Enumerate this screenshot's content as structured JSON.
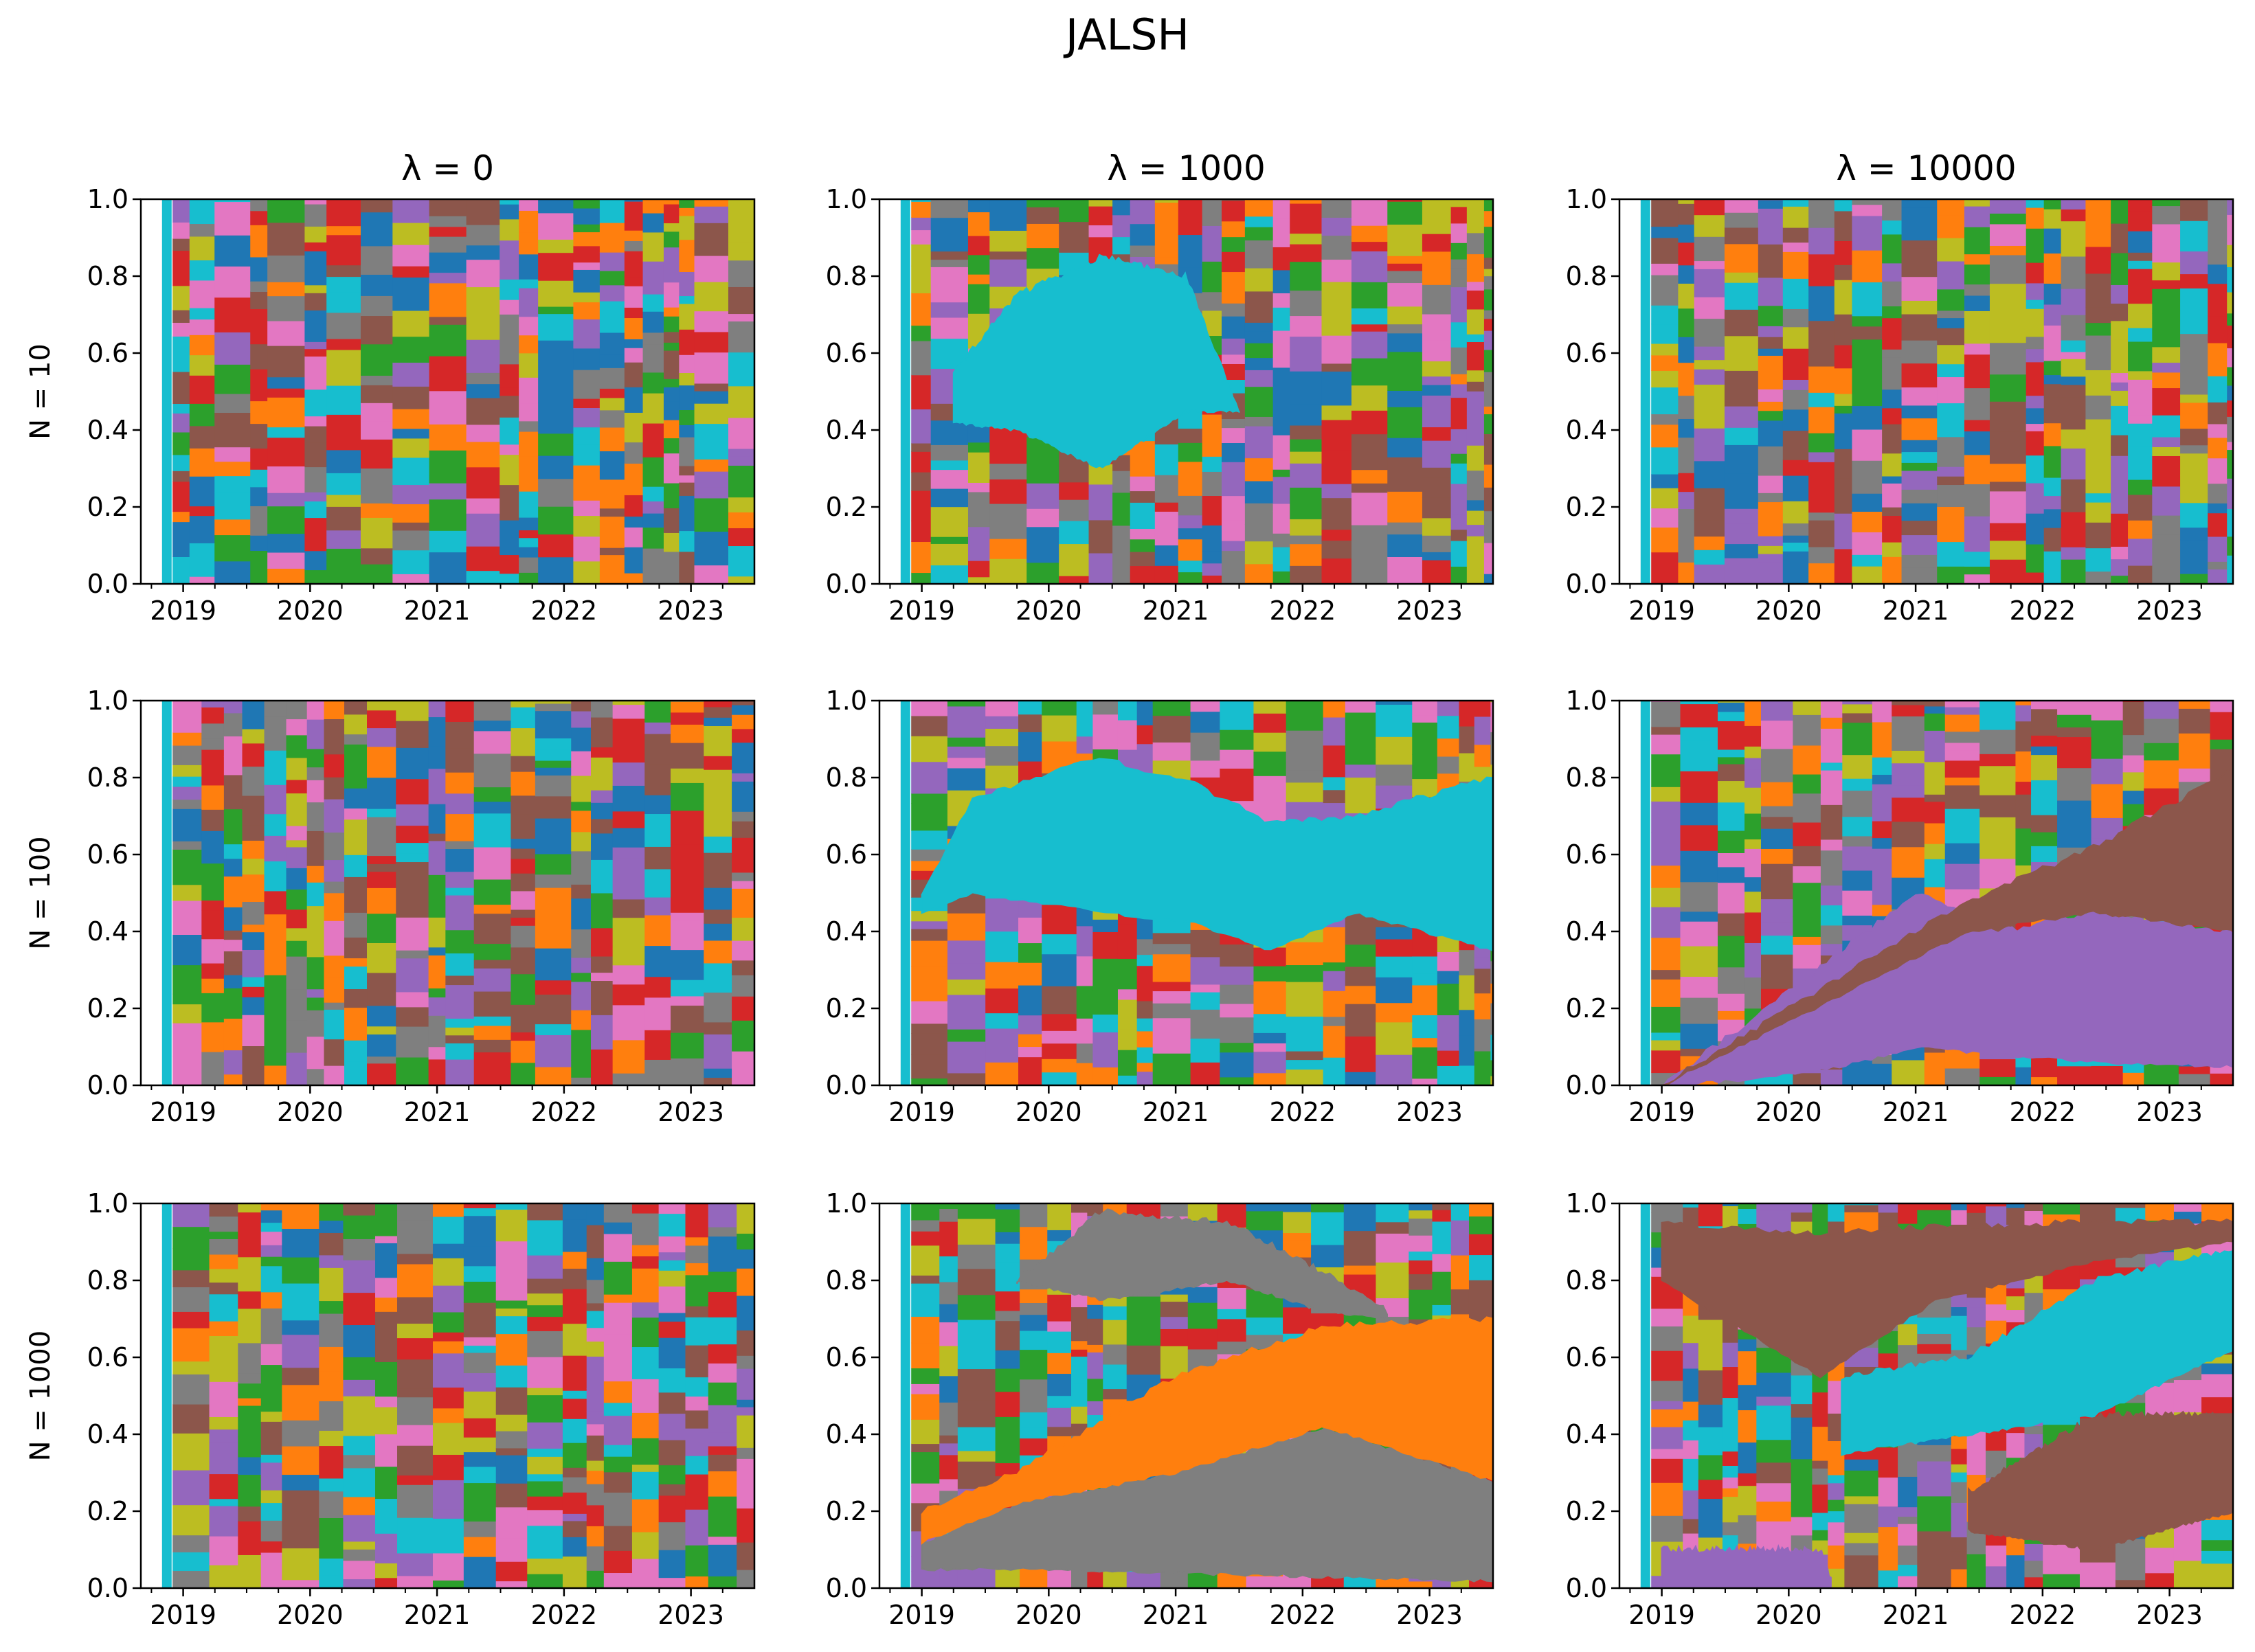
{
  "figure": {
    "title": "JALSH",
    "column_titles": [
      "λ = 0",
      "λ = 1000",
      "λ = 10000"
    ],
    "row_labels": [
      "N = 10",
      "N = 100",
      "N = 1000"
    ]
  },
  "colors": [
    "#1f77b4",
    "#ff7f0e",
    "#2ca02c",
    "#d62728",
    "#9467bd",
    "#8c564b",
    "#e377c2",
    "#7f7f7f",
    "#bcbd22",
    "#17becf"
  ],
  "chart_data": {
    "type": "area",
    "layout": "3x3 grid of stacked-area portfolio weight plots",
    "x_tick_labels": [
      "2019",
      "2020",
      "2021",
      "2022",
      "2023"
    ],
    "xlim": [
      "2018-09",
      "2023-07"
    ],
    "y_tick_labels": [
      "0.0",
      "0.2",
      "0.4",
      "0.6",
      "0.8",
      "1.0"
    ],
    "ylim": [
      0,
      1
    ],
    "grid": false,
    "legend": "none",
    "panels": [
      {
        "row": 0,
        "col": 0,
        "dominant": []
      },
      {
        "row": 0,
        "col": 1,
        "dominant": [
          {
            "color": "#17becf",
            "points": [
              [
                "2019-04",
                0.42,
                0.55
              ],
              [
                "2019-10",
                0.4,
                0.75
              ],
              [
                "2020-06",
                0.3,
                0.85
              ],
              [
                "2021-02",
                0.45,
                0.8
              ],
              [
                "2021-06",
                0.45,
                0.52
              ],
              [
                "2021-07",
                0.45,
                0.45
              ]
            ]
          }
        ]
      },
      {
        "row": 0,
        "col": 2,
        "dominant": []
      },
      {
        "row": 1,
        "col": 0,
        "dominant": []
      },
      {
        "row": 1,
        "col": 1,
        "dominant": [
          {
            "color": "#17becf",
            "points": [
              [
                "2019-01",
                0.45,
                0.5
              ],
              [
                "2019-06",
                0.5,
                0.75
              ],
              [
                "2020-06",
                0.45,
                0.85
              ],
              [
                "2021-03",
                0.42,
                0.78
              ],
              [
                "2021-10",
                0.35,
                0.68
              ],
              [
                "2022-06",
                0.45,
                0.7
              ],
              [
                "2023-07",
                0.35,
                0.8
              ]
            ]
          }
        ]
      },
      {
        "row": 1,
        "col": 2,
        "dominant": [
          {
            "color": "#9467bd",
            "points": [
              [
                "2019-01",
                0.0,
                0.0
              ],
              [
                "2019-11",
                0.02,
                0.2
              ],
              [
                "2020-06",
                0.05,
                0.35
              ],
              [
                "2021-01",
                0.1,
                0.5
              ],
              [
                "2021-09",
                0.08,
                0.4
              ],
              [
                "2022-06",
                0.06,
                0.45
              ],
              [
                "2023-07",
                0.05,
                0.4
              ]
            ]
          },
          {
            "color": "#8c564b",
            "points": [
              [
                "2019-01",
                0.0,
                0.0
              ],
              [
                "2021-06",
                0.4,
                0.48
              ],
              [
                "2022-06",
                0.45,
                0.62
              ],
              [
                "2023-07",
                0.4,
                0.82
              ]
            ]
          }
        ]
      },
      {
        "row": 2,
        "col": 0,
        "dominant": []
      },
      {
        "row": 2,
        "col": 1,
        "dominant": [
          {
            "color": "#7f7f7f",
            "points": [
              [
                "2019-01",
                0.05,
                0.12
              ],
              [
                "2019-10",
                0.05,
                0.22
              ],
              [
                "2021-01",
                0.04,
                0.3
              ],
              [
                "2022-03",
                0.03,
                0.42
              ],
              [
                "2023-07",
                0.02,
                0.28
              ]
            ]
          },
          {
            "color": "#ff7f0e",
            "points": [
              [
                "2019-01",
                0.12,
                0.2
              ],
              [
                "2019-10",
                0.22,
                0.3
              ],
              [
                "2021-01",
                0.3,
                0.55
              ],
              [
                "2022-03",
                0.42,
                0.68
              ],
              [
                "2023-07",
                0.28,
                0.7
              ]
            ]
          },
          {
            "color": "#7f7f7f",
            "points": [
              [
                "2019-10",
                0.8,
                0.8
              ],
              [
                "2020-06",
                0.75,
                0.98
              ],
              [
                "2021-06",
                0.8,
                0.95
              ],
              [
                "2022-03",
                0.72,
                0.82
              ],
              [
                "2022-09",
                0.7,
                0.72
              ]
            ]
          }
        ]
      },
      {
        "row": 2,
        "col": 2,
        "dominant": [
          {
            "color": "#8c564b",
            "points": [
              [
                "2019-01",
                0.8,
                0.95
              ],
              [
                "2020-04",
                0.55,
                0.92
              ],
              [
                "2021-03",
                0.75,
                0.94
              ],
              [
                "2022-06",
                0.85,
                0.95
              ],
              [
                "2023-07",
                0.9,
                0.95
              ]
            ]
          },
          {
            "color": "#17becf",
            "points": [
              [
                "2020-06",
                0.35,
                0.55
              ],
              [
                "2021-06",
                0.4,
                0.6
              ],
              [
                "2022-06",
                0.45,
                0.8
              ],
              [
                "2023-07",
                0.62,
                0.88
              ]
            ]
          },
          {
            "color": "#8c564b",
            "points": [
              [
                "2021-06",
                0.15,
                0.25
              ],
              [
                "2022-06",
                0.1,
                0.45
              ],
              [
                "2023-07",
                0.2,
                0.45
              ]
            ]
          },
          {
            "color": "#9467bd",
            "points": [
              [
                "2019-01",
                0.0,
                0.1
              ],
              [
                "2020-04",
                0.0,
                0.1
              ],
              [
                "2020-05",
                0.0,
                0.02
              ]
            ]
          }
        ]
      }
    ]
  }
}
